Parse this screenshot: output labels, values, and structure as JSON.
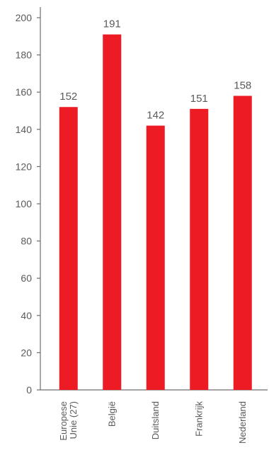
{
  "chart_data": {
    "type": "bar",
    "categories": [
      [
        "Europese",
        "Unie (27)"
      ],
      [
        "België"
      ],
      [
        "Duitsland"
      ],
      [
        "Frankrijk"
      ],
      [
        "Nederland"
      ]
    ],
    "values": [
      152,
      191,
      142,
      151,
      158
    ],
    "data_labels": [
      "152",
      "191",
      "142",
      "151",
      "158"
    ],
    "yticks": [
      0,
      20,
      40,
      60,
      80,
      100,
      120,
      140,
      160,
      180,
      200
    ],
    "ylim": [
      0,
      200
    ],
    "title": "",
    "xlabel": "",
    "ylabel": "",
    "grid": false,
    "bar_color": "#ed1c24",
    "axis_color": "#6d6d6d",
    "text_color": "#5a5a5a"
  }
}
